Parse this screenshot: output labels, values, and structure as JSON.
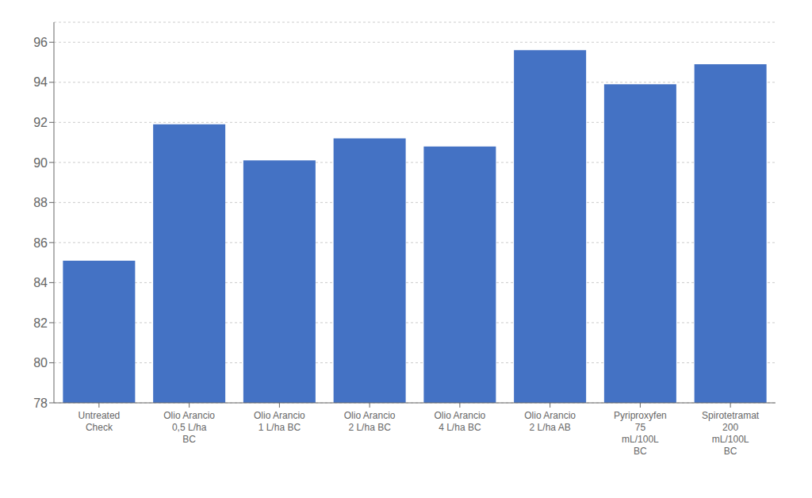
{
  "chart_data": {
    "type": "bar",
    "categories": [
      "Untreated\nCheck",
      "Olio Arancio\n0,5 L/ha\nBC",
      "Olio Arancio\n1 L/ha BC",
      "Olio Arancio\n2 L/ha BC",
      "Olio Arancio\n4 L/ha BC",
      "Olio Arancio\n2 L/ha AB",
      "Pyriproxyfen\n75\nmL/100L\nBC",
      "Spirotetramat\n200\nmL/100L\nBC"
    ],
    "values": [
      85.1,
      91.9,
      90.1,
      91.2,
      90.8,
      95.6,
      93.9,
      94.9
    ],
    "color": "#4472C4",
    "ylim": [
      78,
      97
    ],
    "yticks": [
      78,
      80,
      82,
      84,
      86,
      88,
      90,
      92,
      94,
      96
    ],
    "grid": true
  }
}
